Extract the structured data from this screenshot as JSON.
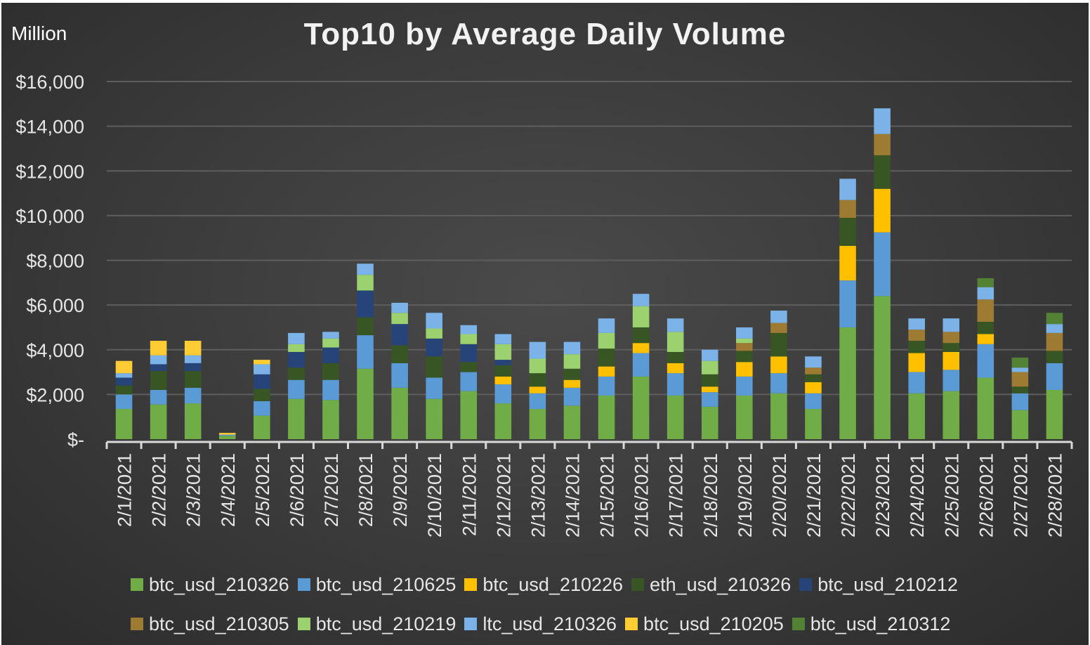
{
  "chart_data": {
    "type": "bar",
    "stacked": true,
    "title": "Top10 by Average Daily Volume",
    "ylabel": "Million",
    "ylim": [
      0,
      16000
    ],
    "yticks": [
      0,
      2000,
      4000,
      6000,
      8000,
      10000,
      12000,
      14000,
      16000
    ],
    "ytick_labels": [
      "$-",
      "$2,000",
      "$4,000",
      "$6,000",
      "$8,000",
      "$10,000",
      "$12,000",
      "$14,000",
      "$16,000"
    ],
    "grid": true,
    "legend_position": "bottom",
    "categories": [
      "2/1/2021",
      "2/2/2021",
      "2/3/2021",
      "2/4/2021",
      "2/5/2021",
      "2/6/2021",
      "2/7/2021",
      "2/8/2021",
      "2/9/2021",
      "2/10/2021",
      "2/11/2021",
      "2/12/2021",
      "2/13/2021",
      "2/14/2021",
      "2/15/2021",
      "2/16/2021",
      "2/17/2021",
      "2/18/2021",
      "2/19/2021",
      "2/20/2021",
      "2/21/2021",
      "2/22/2021",
      "2/23/2021",
      "2/24/2021",
      "2/25/2021",
      "2/26/2021",
      "2/27/2021",
      "2/28/2021"
    ],
    "series": [
      {
        "name": "btc_usd_210326",
        "color": "#70ad47",
        "values": [
          1350,
          1550,
          1600,
          150,
          1050,
          1800,
          1750,
          3150,
          2300,
          1800,
          2150,
          1600,
          1350,
          1500,
          1950,
          2800,
          1950,
          1450,
          1950,
          2050,
          1350,
          5000,
          6400,
          2050,
          2150,
          2750,
          1300,
          2200
        ]
      },
      {
        "name": "btc_usd_210625",
        "color": "#5b9bd5",
        "values": [
          650,
          650,
          700,
          50,
          650,
          850,
          900,
          1500,
          1100,
          950,
          850,
          850,
          700,
          800,
          850,
          1050,
          1000,
          650,
          850,
          900,
          700,
          2100,
          2850,
          950,
          950,
          1500,
          750,
          1200
        ]
      },
      {
        "name": "btc_usd_210226",
        "color": "#ffc000",
        "values": [
          0,
          0,
          0,
          0,
          0,
          0,
          0,
          0,
          0,
          0,
          0,
          350,
          300,
          350,
          450,
          450,
          450,
          250,
          650,
          750,
          500,
          1550,
          1950,
          850,
          800,
          450,
          0,
          0
        ]
      },
      {
        "name": "eth_usd_210326",
        "color": "#375623",
        "values": [
          400,
          850,
          750,
          0,
          550,
          550,
          750,
          800,
          800,
          950,
          450,
          500,
          600,
          500,
          800,
          700,
          500,
          550,
          500,
          1050,
          350,
          1250,
          1500,
          550,
          400,
          550,
          300,
          550
        ]
      },
      {
        "name": "btc_usd_210212",
        "color": "#264478",
        "values": [
          350,
          300,
          350,
          0,
          650,
          700,
          700,
          1200,
          950,
          800,
          800,
          250,
          0,
          0,
          0,
          0,
          0,
          0,
          0,
          0,
          0,
          0,
          0,
          0,
          0,
          0,
          0,
          0
        ]
      },
      {
        "name": "btc_usd_210305",
        "color": "#9e7b33",
        "values": [
          0,
          0,
          0,
          0,
          0,
          0,
          0,
          0,
          0,
          0,
          0,
          0,
          0,
          0,
          0,
          0,
          0,
          0,
          350,
          450,
          300,
          800,
          950,
          500,
          500,
          1000,
          650,
          800
        ]
      },
      {
        "name": "btc_usd_210219",
        "color": "#9cd16f",
        "values": [
          0,
          0,
          0,
          0,
          0,
          350,
          400,
          700,
          500,
          450,
          450,
          700,
          650,
          650,
          700,
          950,
          900,
          600,
          200,
          0,
          0,
          0,
          0,
          0,
          0,
          0,
          0,
          0
        ]
      },
      {
        "name": "ltc_usd_210326",
        "color": "#7bb3e8",
        "values": [
          200,
          400,
          350,
          0,
          450,
          500,
          300,
          500,
          450,
          700,
          400,
          450,
          750,
          550,
          650,
          550,
          600,
          500,
          500,
          550,
          500,
          950,
          1150,
          500,
          600,
          550,
          200,
          400
        ]
      },
      {
        "name": "btc_usd_210205",
        "color": "#ffcd33",
        "values": [
          550,
          650,
          650,
          80,
          200,
          0,
          0,
          0,
          0,
          0,
          0,
          0,
          0,
          0,
          0,
          0,
          0,
          0,
          0,
          0,
          0,
          0,
          0,
          0,
          0,
          0,
          0,
          0
        ]
      },
      {
        "name": "btc_usd_210312",
        "color": "#548235",
        "values": [
          0,
          0,
          0,
          0,
          0,
          0,
          0,
          0,
          0,
          0,
          0,
          0,
          0,
          0,
          0,
          0,
          0,
          0,
          0,
          0,
          0,
          0,
          0,
          0,
          0,
          400,
          450,
          500
        ]
      }
    ]
  }
}
